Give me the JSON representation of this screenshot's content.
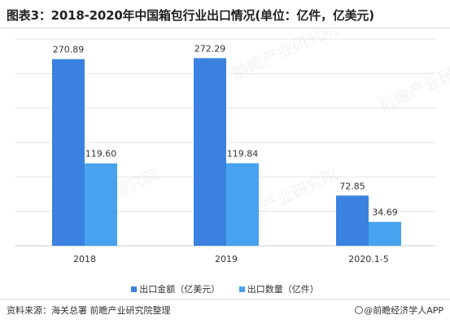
{
  "title": "图表3：2018-2020年中国箱包行业出口情况(单位：亿件，亿美元)",
  "source": "资料来源：海关总署 前瞻产业研究院整理",
  "brand": "@前瞻经济学人APP",
  "watermark": "前瞻产业研究院",
  "chart_data": {
    "type": "bar",
    "categories": [
      "2018",
      "2019",
      "2020.1-5"
    ],
    "series": [
      {
        "name": "出口金额（亿美元）",
        "values": [
          270.89,
          272.29,
          72.85
        ],
        "labels": [
          "270.89",
          "272.29",
          "72.85"
        ],
        "color": "#3b82e0"
      },
      {
        "name": "出口数量（亿件）",
        "values": [
          119.6,
          119.84,
          34.69
        ],
        "labels": [
          "119.60",
          "119.84",
          "34.69"
        ],
        "color": "#47a3ef"
      }
    ],
    "ylim": [
      0,
      300
    ],
    "grid": true,
    "legend": "bottom",
    "gridColor": "#e6e6e6"
  }
}
